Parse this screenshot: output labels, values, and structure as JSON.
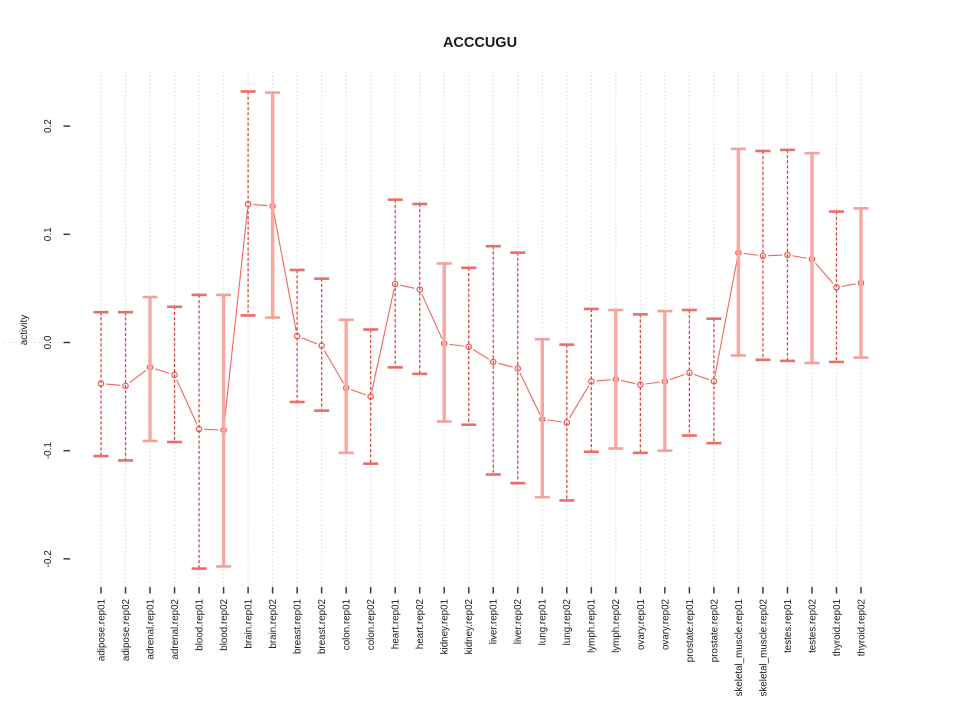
{
  "title": "ACCCUGU",
  "chart_data": {
    "type": "scatter",
    "title": "ACCCUGU",
    "xlabel": "",
    "ylabel": "activity",
    "ylim": [
      -0.226,
      0.25
    ],
    "grid": "vertical dotted gridline at each category; dotted horizontal line at 0",
    "legend": "none",
    "ytick_values": [
      -0.2,
      -0.1,
      0.0,
      0.1,
      0.2
    ],
    "ytick_labels": [
      "-0.2",
      "-0.1",
      "0.0",
      "0.1",
      "0.2"
    ],
    "categories": [
      "adipose.rep01",
      "adipose.rep02",
      "adrenal.rep01",
      "adrenal.rep02",
      "blood.rep01",
      "blood.rep02",
      "brain.rep01",
      "brain.rep02",
      "breast.rep01",
      "breast.rep02",
      "colon.rep01",
      "colon.rep02",
      "heart.rep01",
      "heart.rep02",
      "kidney.rep01",
      "kidney.rep02",
      "liver.rep01",
      "liver.rep02",
      "lung.rep01",
      "lung.rep02",
      "lymph.rep01",
      "lymph.rep02",
      "ovary.rep01",
      "ovary.rep02",
      "prostate.rep01",
      "prostate.rep02",
      "skeletal_muscle.rep01",
      "skeletal_muscle.rep02",
      "testes.rep01",
      "testes.rep02",
      "thyroid.rep01",
      "thyroid.rep02"
    ],
    "series": [
      {
        "name": "activity",
        "values": [
          -0.038,
          -0.04,
          -0.023,
          -0.03,
          -0.08,
          -0.081,
          0.128,
          0.126,
          0.006,
          -0.003,
          -0.042,
          -0.05,
          0.054,
          0.049,
          -0.001,
          -0.004,
          -0.018,
          -0.024,
          -0.071,
          -0.074,
          -0.036,
          -0.034,
          -0.039,
          -0.036,
          -0.028,
          -0.036,
          0.083,
          0.08,
          0.081,
          0.077,
          0.051,
          0.055
        ],
        "err_high": [
          0.028,
          0.028,
          0.042,
          0.033,
          0.044,
          0.044,
          0.232,
          0.231,
          0.067,
          0.059,
          0.021,
          0.012,
          0.132,
          0.128,
          0.073,
          0.069,
          0.089,
          0.083,
          0.003,
          -0.002,
          0.031,
          0.03,
          0.026,
          0.029,
          0.03,
          0.022,
          0.179,
          0.177,
          0.178,
          0.175,
          0.121,
          0.124
        ],
        "err_low": [
          -0.105,
          -0.109,
          -0.091,
          -0.092,
          -0.209,
          -0.207,
          0.025,
          0.023,
          -0.055,
          -0.063,
          -0.102,
          -0.112,
          -0.023,
          -0.029,
          -0.073,
          -0.076,
          -0.122,
          -0.13,
          -0.143,
          -0.146,
          -0.101,
          -0.098,
          -0.102,
          -0.1,
          -0.086,
          -0.093,
          -0.012,
          -0.016,
          -0.017,
          -0.019,
          -0.018,
          -0.014
        ],
        "bar_styles": [
          "dashed",
          "dashed",
          "solid",
          "dashed",
          "dashed",
          "solid",
          "dashed",
          "solid",
          "dashed",
          "dashed",
          "solid",
          "dashed",
          "dashed",
          "dashed",
          "solid",
          "dashed",
          "dashed",
          "dashed",
          "solid",
          "dashed",
          "dashed",
          "solid",
          "dashed",
          "solid",
          "dashed",
          "dashed",
          "solid",
          "dashed",
          "dashed",
          "solid",
          "dashed",
          "solid"
        ]
      }
    ]
  },
  "colors": {
    "point": "#ee564e",
    "connector": "#f0665e",
    "bar_solid": "#f8a8a1",
    "bar_dashed": "#dd4038",
    "cap_solid": "#f5a09a",
    "cap_dashed": "#eb6e66",
    "grid": "#c9c9c9",
    "zero_line": "#c9c9c9",
    "box": "#7d7d7d",
    "tick": "#3c3c3c",
    "text": "#1a1a1a",
    "background": "#ffffff"
  }
}
